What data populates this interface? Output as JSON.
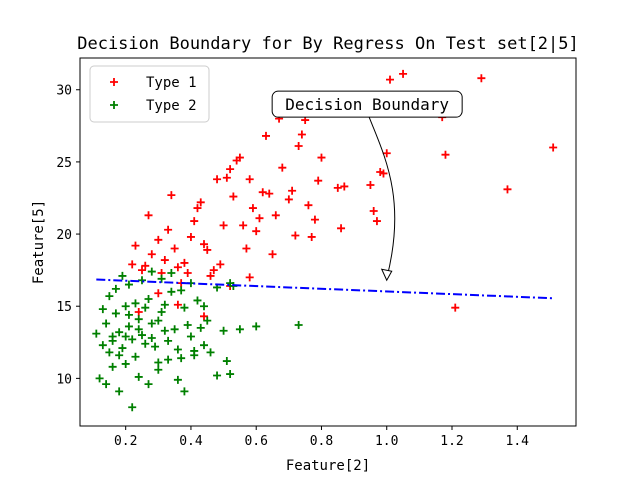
{
  "chart_data": {
    "type": "scatter",
    "title": "Decision Boundary for By Regress On Test set[2|5]",
    "xlabel": "Feature[2]",
    "ylabel": "Feature[5]",
    "xlim": [
      0.06,
      1.58
    ],
    "ylim": [
      6.7,
      32.2
    ],
    "xticks": [
      0.2,
      0.4,
      0.6,
      0.8,
      1.0,
      1.2,
      1.4
    ],
    "xtick_labels": [
      "0.2",
      "0.4",
      "0.6",
      "0.8",
      "1.0",
      "1.2",
      "1.4"
    ],
    "yticks": [
      10,
      15,
      20,
      25,
      30
    ],
    "ytick_labels": [
      "10",
      "15",
      "20",
      "25",
      "30"
    ],
    "grid": false,
    "legend_position": "top-left",
    "series": [
      {
        "name": "Type 1",
        "color": "#ff0000",
        "marker": "plus",
        "points": [
          [
            0.27,
            21.3
          ],
          [
            0.22,
            17.9
          ],
          [
            0.23,
            19.2
          ],
          [
            0.25,
            17.5
          ],
          [
            0.26,
            17.8
          ],
          [
            0.28,
            18.6
          ],
          [
            0.3,
            19.6
          ],
          [
            0.31,
            17.3
          ],
          [
            0.32,
            18.2
          ],
          [
            0.33,
            20.3
          ],
          [
            0.34,
            22.7
          ],
          [
            0.35,
            19.0
          ],
          [
            0.36,
            17.7
          ],
          [
            0.37,
            16.6
          ],
          [
            0.38,
            18.0
          ],
          [
            0.39,
            17.3
          ],
          [
            0.4,
            19.8
          ],
          [
            0.41,
            20.9
          ],
          [
            0.42,
            21.8
          ],
          [
            0.43,
            22.2
          ],
          [
            0.44,
            19.3
          ],
          [
            0.45,
            18.9
          ],
          [
            0.46,
            17.1
          ],
          [
            0.47,
            17.5
          ],
          [
            0.48,
            23.8
          ],
          [
            0.49,
            17.9
          ],
          [
            0.5,
            20.6
          ],
          [
            0.51,
            23.9
          ],
          [
            0.52,
            24.5
          ],
          [
            0.53,
            22.6
          ],
          [
            0.54,
            25.1
          ],
          [
            0.55,
            25.3
          ],
          [
            0.56,
            20.6
          ],
          [
            0.57,
            19.0
          ],
          [
            0.58,
            23.8
          ],
          [
            0.59,
            21.8
          ],
          [
            0.6,
            20.2
          ],
          [
            0.61,
            21.1
          ],
          [
            0.62,
            22.9
          ],
          [
            0.63,
            26.8
          ],
          [
            0.64,
            22.8
          ],
          [
            0.65,
            18.6
          ],
          [
            0.66,
            21.3
          ],
          [
            0.67,
            28.0
          ],
          [
            0.68,
            24.6
          ],
          [
            0.7,
            22.4
          ],
          [
            0.71,
            23.0
          ],
          [
            0.72,
            19.9
          ],
          [
            0.73,
            26.1
          ],
          [
            0.74,
            26.9
          ],
          [
            0.75,
            27.9
          ],
          [
            0.76,
            22.0
          ],
          [
            0.77,
            19.8
          ],
          [
            0.78,
            21.0
          ],
          [
            0.79,
            23.7
          ],
          [
            0.8,
            25.3
          ],
          [
            0.85,
            23.2
          ],
          [
            0.86,
            20.4
          ],
          [
            0.87,
            23.3
          ],
          [
            0.95,
            23.4
          ],
          [
            0.96,
            21.6
          ],
          [
            0.97,
            20.9
          ],
          [
            0.98,
            24.3
          ],
          [
            0.99,
            24.2
          ],
          [
            1.0,
            25.6
          ],
          [
            1.01,
            30.7
          ],
          [
            1.05,
            31.1
          ],
          [
            1.17,
            28.1
          ],
          [
            1.18,
            25.5
          ],
          [
            1.21,
            14.9
          ],
          [
            1.29,
            30.8
          ],
          [
            1.37,
            23.1
          ],
          [
            1.51,
            26.0
          ],
          [
            0.3,
            15.9
          ],
          [
            0.36,
            15.1
          ],
          [
            0.52,
            16.4
          ],
          [
            0.58,
            17.0
          ],
          [
            0.24,
            14.6
          ],
          [
            0.44,
            14.3
          ]
        ]
      },
      {
        "name": "Type 2",
        "color": "#008000",
        "marker": "plus",
        "points": [
          [
            0.13,
            12.3
          ],
          [
            0.14,
            13.8
          ],
          [
            0.15,
            11.8
          ],
          [
            0.16,
            12.9
          ],
          [
            0.17,
            14.5
          ],
          [
            0.18,
            13.2
          ],
          [
            0.19,
            12.1
          ],
          [
            0.2,
            15.0
          ],
          [
            0.21,
            13.6
          ],
          [
            0.22,
            12.7
          ],
          [
            0.23,
            11.5
          ],
          [
            0.24,
            14.1
          ],
          [
            0.25,
            13.0
          ],
          [
            0.26,
            12.4
          ],
          [
            0.27,
            15.5
          ],
          [
            0.28,
            13.8
          ],
          [
            0.29,
            12.2
          ],
          [
            0.3,
            11.1
          ],
          [
            0.31,
            14.6
          ],
          [
            0.32,
            13.3
          ],
          [
            0.33,
            12.6
          ],
          [
            0.34,
            16.0
          ],
          [
            0.35,
            13.4
          ],
          [
            0.36,
            12.0
          ],
          [
            0.37,
            11.4
          ],
          [
            0.38,
            14.9
          ],
          [
            0.39,
            13.7
          ],
          [
            0.4,
            12.9
          ],
          [
            0.41,
            11.6
          ],
          [
            0.42,
            15.4
          ],
          [
            0.43,
            13.5
          ],
          [
            0.44,
            12.3
          ],
          [
            0.45,
            14.0
          ],
          [
            0.46,
            11.8
          ],
          [
            0.48,
            10.2
          ],
          [
            0.5,
            13.3
          ],
          [
            0.51,
            11.2
          ],
          [
            0.52,
            10.3
          ],
          [
            0.53,
            16.4
          ],
          [
            0.55,
            13.4
          ],
          [
            0.12,
            10.0
          ],
          [
            0.14,
            9.6
          ],
          [
            0.16,
            10.8
          ],
          [
            0.18,
            9.1
          ],
          [
            0.2,
            11.0
          ],
          [
            0.22,
            8.0
          ],
          [
            0.24,
            10.1
          ],
          [
            0.27,
            9.6
          ],
          [
            0.3,
            10.6
          ],
          [
            0.33,
            11.3
          ],
          [
            0.36,
            9.9
          ],
          [
            0.38,
            9.1
          ],
          [
            0.41,
            11.9
          ],
          [
            0.11,
            13.1
          ],
          [
            0.13,
            14.8
          ],
          [
            0.15,
            15.7
          ],
          [
            0.17,
            16.2
          ],
          [
            0.19,
            17.1
          ],
          [
            0.21,
            16.5
          ],
          [
            0.23,
            15.2
          ],
          [
            0.25,
            16.8
          ],
          [
            0.28,
            17.4
          ],
          [
            0.31,
            16.9
          ],
          [
            0.34,
            17.3
          ],
          [
            0.37,
            16.1
          ],
          [
            0.4,
            16.6
          ],
          [
            0.44,
            15.0
          ],
          [
            0.48,
            16.3
          ],
          [
            0.52,
            16.6
          ],
          [
            0.6,
            13.6
          ],
          [
            0.73,
            13.7
          ],
          [
            0.16,
            12.6
          ],
          [
            0.18,
            11.6
          ],
          [
            0.2,
            12.9
          ],
          [
            0.21,
            14.4
          ],
          [
            0.24,
            13.4
          ],
          [
            0.26,
            14.9
          ],
          [
            0.28,
            12.8
          ],
          [
            0.3,
            14.0
          ],
          [
            0.32,
            15.1
          ]
        ]
      }
    ],
    "boundary": {
      "name": "Decision Boundary",
      "style": "dash-dot",
      "color": "#0000ff",
      "x": [
        0.11,
        1.51
      ],
      "y": [
        16.85,
        15.55
      ]
    },
    "annotation": {
      "text": "Decision Boundary",
      "arrow_to": [
        1.0,
        16.8
      ],
      "text_at": [
        0.94,
        29.0
      ]
    }
  }
}
